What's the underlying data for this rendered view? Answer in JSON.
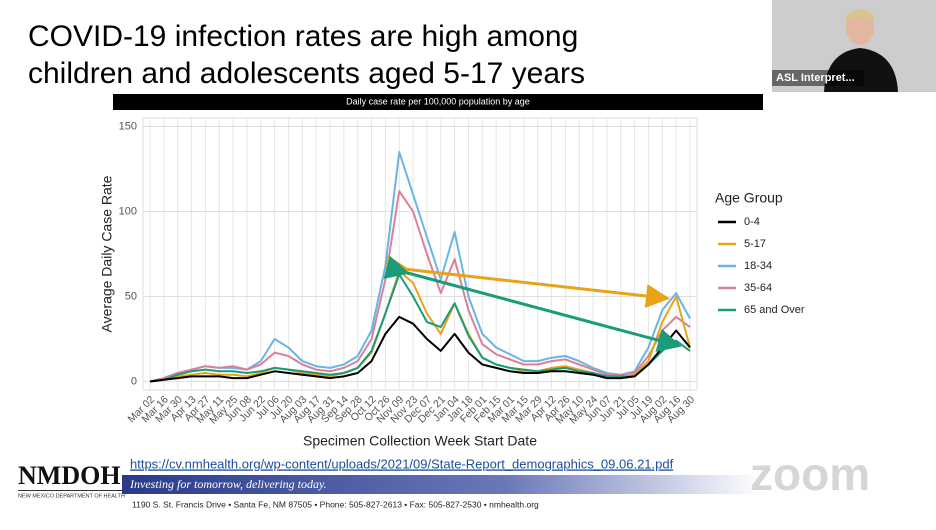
{
  "slide": {
    "title_lines": [
      "COVID-19 infection rates are high among",
      "children and adolescents aged 5-17 years"
    ],
    "chart_header": "Daily case rate per 100,000 population by age",
    "link": "https://cv.nmhealth.org/wp-content/uploads/2021/09/State-Report_demographics_09.06.21.pdf",
    "logo": "NMDOH",
    "logo_sub": "NEW MEXICO DEPARTMENT OF HEALTH",
    "tagline": "Investing for tomorrow, delivering today.",
    "address": "1190 S. St. Francis Drive • Santa Fe, NM 87505 • Phone: 505-827-2613 • Fax: 505-827-2530 • nmhealth.org"
  },
  "video_tile": {
    "name": "ASL Interpret..."
  },
  "watermark": "zoom",
  "chart_data": {
    "type": "line",
    "x_label": "Specimen Collection Week Start Date",
    "y_label": "Average Daily Case Rate",
    "legend_title": "Age Group",
    "categories": [
      "Mar 02",
      "Mar 16",
      "Mar 30",
      "Apr 13",
      "Apr 27",
      "May 11",
      "May 25",
      "Jun 08",
      "Jun 22",
      "Jul 06",
      "Jul 20",
      "Aug 03",
      "Aug 17",
      "Aug 31",
      "Sep 14",
      "Sep 28",
      "Oct 12",
      "Oct 26",
      "Nov 09",
      "Nov 23",
      "Dec 07",
      "Dec 21",
      "Jan 04",
      "Jan 18",
      "Feb 01",
      "Feb 15",
      "Mar 01",
      "Mar 15",
      "Mar 29",
      "Apr 12",
      "Apr 26",
      "May 10",
      "May 24",
      "Jun 07",
      "Jun 21",
      "Jul 05",
      "Jul 19",
      "Aug 02",
      "Aug 16",
      "Aug 30"
    ],
    "ylim": [
      -5,
      155
    ],
    "yticks": [
      0,
      50,
      100,
      150
    ],
    "grid": true,
    "series": [
      {
        "name": "0-4",
        "color": "#000000",
        "values": [
          0,
          1,
          2,
          3,
          3,
          3,
          2,
          2,
          4,
          6,
          5,
          4,
          3,
          2,
          3,
          5,
          12,
          28,
          38,
          34,
          25,
          18,
          28,
          17,
          10,
          8,
          6,
          5,
          5,
          6,
          6,
          5,
          4,
          2,
          2,
          3,
          10,
          20,
          30,
          20
        ]
      },
      {
        "name": "5-17",
        "color": "#e8a317",
        "values": [
          0,
          1,
          3,
          4,
          5,
          4,
          4,
          3,
          5,
          8,
          7,
          5,
          4,
          3,
          5,
          8,
          17,
          40,
          65,
          58,
          40,
          28,
          46,
          28,
          14,
          10,
          8,
          6,
          6,
          8,
          9,
          7,
          5,
          2,
          2,
          4,
          12,
          35,
          50,
          20
        ]
      },
      {
        "name": "18-34",
        "color": "#6ab4e6",
        "values": [
          0,
          2,
          5,
          7,
          9,
          8,
          8,
          7,
          12,
          25,
          20,
          12,
          9,
          8,
          10,
          15,
          30,
          68,
          135,
          110,
          85,
          60,
          88,
          50,
          28,
          20,
          16,
          12,
          12,
          14,
          15,
          12,
          8,
          5,
          4,
          6,
          20,
          42,
          52,
          37
        ]
      },
      {
        "name": "35-64",
        "color": "#d9819a",
        "values": [
          0,
          2,
          5,
          7,
          9,
          8,
          9,
          7,
          10,
          17,
          15,
          10,
          7,
          6,
          8,
          12,
          25,
          60,
          112,
          100,
          75,
          52,
          72,
          42,
          22,
          16,
          13,
          10,
          10,
          12,
          13,
          10,
          7,
          4,
          4,
          5,
          15,
          30,
          38,
          32
        ]
      },
      {
        "name": "65 and Over",
        "color": "#1a9b7a",
        "values": [
          0,
          1,
          4,
          6,
          7,
          6,
          6,
          5,
          6,
          8,
          7,
          6,
          5,
          4,
          5,
          8,
          18,
          40,
          63,
          50,
          35,
          32,
          46,
          27,
          14,
          10,
          8,
          7,
          6,
          7,
          8,
          6,
          5,
          3,
          3,
          3,
          10,
          18,
          24,
          18
        ]
      }
    ]
  }
}
